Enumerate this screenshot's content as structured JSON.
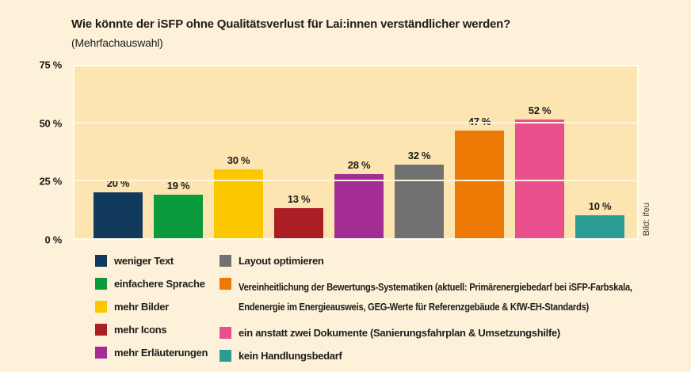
{
  "header": {
    "title": "Wie könnte der iSFP ohne Qualitätsverlust für Lai:innen verständlicher werden?",
    "subtitle": "(Mehrfachauswahl)"
  },
  "credit": "Bild: ifeu",
  "chart_data": {
    "type": "bar",
    "title": "Wie könnte der iSFP ohne Qualitätsverlust für Lai:innen verständlicher werden?",
    "subtitle": "(Mehrfachauswahl)",
    "categories": [
      "weniger Text",
      "einfachere Sprache",
      "mehr Bilder",
      "mehr Icons",
      "mehr Erläuterungen",
      "Layout optimieren",
      "Vereinheitlichung der Bewertungs-Systematiken (aktuell: Primärenergiebedarf bei iSFP-Farbskala, Endenergie im Energieausweis, GEG-Werte für Referenzgebäude & KfW-EH-Standards)",
      "ein anstatt zwei Dokumente (Sanierungsfahrplan & Umsetzungshilfe)",
      "kein Handlungsbedarf"
    ],
    "values": [
      20,
      19,
      30,
      13,
      28,
      32,
      47,
      52,
      10
    ],
    "value_labels": [
      "20 %",
      "19 %",
      "30 %",
      "13 %",
      "28 %",
      "32 %",
      "47 %",
      "52 %",
      "10 %"
    ],
    "colors": [
      "#123a5c",
      "#0b9b3d",
      "#fbc800",
      "#ac1e23",
      "#a32d94",
      "#727171",
      "#ec7a04",
      "#ea4f8e",
      "#2b9c93"
    ],
    "xlabel": "",
    "ylabel": "",
    "ylim": [
      0,
      75
    ],
    "yticks": [
      {
        "value": 0,
        "label": "0 %"
      },
      {
        "value": 25,
        "label": "25 %"
      },
      {
        "value": 50,
        "label": "50 %"
      },
      {
        "value": 75,
        "label": "75 %"
      }
    ],
    "grid": true,
    "gridlines_at": [
      25,
      50
    ],
    "legend_position": "bottom"
  },
  "legend": {
    "columns": [
      {
        "items": [
          {
            "label": "weniger Text",
            "color": "#123a5c"
          },
          {
            "label": "einfachere Sprache",
            "color": "#0b9b3d"
          },
          {
            "label": "mehr Bilder",
            "color": "#fbc800"
          },
          {
            "label": "mehr Icons",
            "color": "#ac1e23"
          },
          {
            "label": "mehr Erläuterungen",
            "color": "#a32d94"
          }
        ]
      },
      {
        "items": [
          {
            "label": "Layout optimieren",
            "color": "#727171"
          },
          {
            "label": "Vereinheitlichung der Bewertungs-Systematiken (aktuell: Primärenergiebedarf bei iSFP-Farbskala, Endenergie im Energieausweis, GEG-Werte für Referenzgebäude & KfW-EH-Standards)",
            "color": "#ec7a04"
          },
          {
            "label": "ein anstatt zwei Dokumente (Sanierungsfahrplan & Umsetzungshilfe)",
            "color": "#ea4f8e"
          },
          {
            "label": "kein Handlungsbedarf",
            "color": "#2b9c93"
          }
        ]
      }
    ]
  },
  "colors": {
    "page_background": "#fdf2d9",
    "plot_background": "#fde5b1",
    "gridline": "#fdf4dd",
    "plot_border": "#fffdf0",
    "text": "#1d1d1b"
  }
}
